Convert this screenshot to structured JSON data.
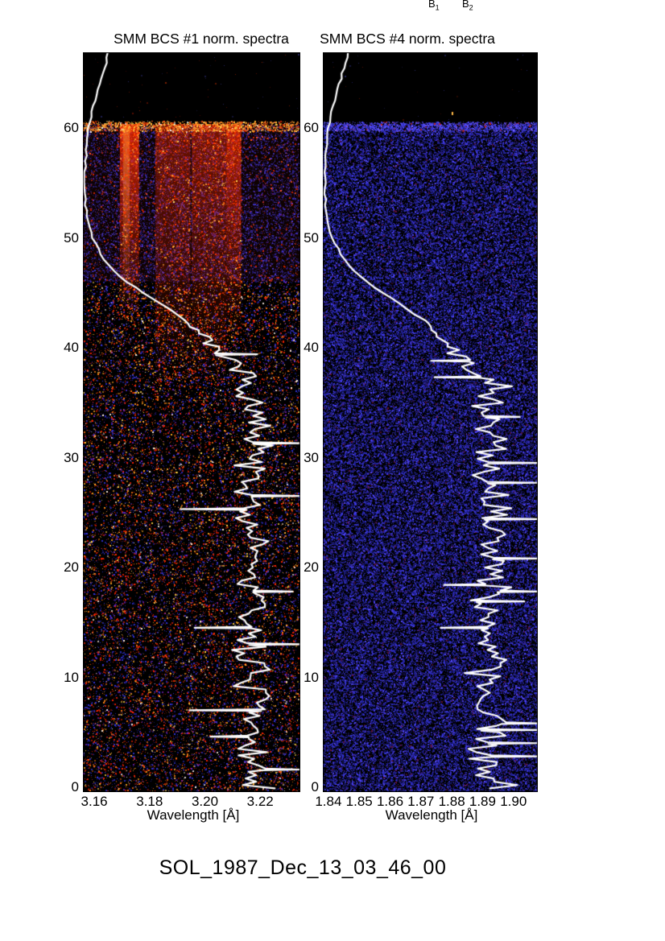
{
  "page": {
    "background": "#ffffff"
  },
  "header": {
    "b1": {
      "base": "B",
      "sub": "1"
    },
    "b2": {
      "base": "B",
      "sub": "2"
    }
  },
  "caption": "SOL_1987_Dec_13_03_46_00",
  "overlay_lightcurve": {
    "color": "#ffffff",
    "width": 2.2,
    "smooth": [
      [
        66.9,
        0.119
      ],
      [
        64,
        0.078
      ],
      [
        62,
        0.048
      ],
      [
        60,
        0.026
      ],
      [
        58,
        0.015
      ],
      [
        56,
        0.009
      ],
      [
        54,
        0.009
      ],
      [
        52,
        0.017
      ],
      [
        50,
        0.041
      ],
      [
        48,
        0.1
      ],
      [
        47,
        0.144
      ],
      [
        46,
        0.204
      ],
      [
        45,
        0.278
      ],
      [
        44,
        0.359
      ],
      [
        43,
        0.433
      ],
      [
        42.5,
        0.47
      ]
    ],
    "jagged": {
      "start": 42.5,
      "full": 36.5,
      "mean": 0.78,
      "amp": 0.13,
      "spike_prob": 0.12,
      "step": 0.3
    }
  },
  "chart_data": [
    {
      "type": "heatmap",
      "title": "SMM BCS #1 norm. spectra",
      "xlabel": "Wavelength [Å]",
      "xlim": [
        3.1559,
        3.2345
      ],
      "ylim": [
        -0.44,
        66.89
      ],
      "x_ticks": [
        {
          "label": "3.16",
          "value": 3.16
        },
        {
          "label": "3.18",
          "value": 3.18
        },
        {
          "label": "3.20",
          "value": 3.2
        },
        {
          "label": "3.22",
          "value": 3.22
        }
      ],
      "y_ticks": [
        {
          "label": "0",
          "value": 0
        },
        {
          "label": "10",
          "value": 10
        },
        {
          "label": "20",
          "value": 20
        },
        {
          "label": "30",
          "value": 30
        },
        {
          "label": "40",
          "value": 40
        },
        {
          "label": "50",
          "value": 50
        },
        {
          "label": "60",
          "value": 60
        }
      ],
      "background": "#000000",
      "seed": 1234,
      "curve_seed": 7,
      "data_top_value": 60.35,
      "noise_regions": [
        {
          "v0": 46,
          "v1": 60.35,
          "density": 0.26,
          "big": 0.25,
          "colors": [
            [
              "#16166e",
              22
            ],
            [
              "#222299",
              24
            ],
            [
              "#2e2ec0",
              20
            ],
            [
              "#3b36dd",
              12
            ],
            [
              "#4a40ee",
              7
            ],
            [
              "#0a0a33",
              10
            ],
            [
              "#551b99",
              5
            ]
          ]
        },
        {
          "v0": 46,
          "v1": 60.35,
          "density": 0.035,
          "big": 0.3,
          "colors": [
            [
              "#cc2200",
              50
            ],
            [
              "#992211",
              30
            ],
            [
              "#ff5522",
              20
            ]
          ]
        },
        {
          "v0": -0.44,
          "v1": 46,
          "density": 0.14,
          "big": 0.3,
          "colors": [
            [
              "#3333dd",
              26
            ],
            [
              "#22229a",
              12
            ],
            [
              "#ff2200",
              20
            ],
            [
              "#cc1e00",
              10
            ],
            [
              "#ff7711",
              12
            ],
            [
              "#ffaa22",
              7
            ],
            [
              "#7722bb",
              6
            ],
            [
              "#ffd044",
              4
            ],
            [
              "#ffeedd",
              3
            ]
          ]
        }
      ],
      "boundary_row": {
        "v0": 59.7,
        "v1": 60.6,
        "density": 0.5,
        "big": 0.35,
        "colors": [
          [
            "#ff8822",
            28
          ],
          [
            "#ffbb33",
            22
          ],
          [
            "#ff5511",
            22
          ],
          [
            "#ffdd66",
            12
          ],
          [
            "#cc2200",
            10
          ],
          [
            "#ffffff",
            6
          ]
        ]
      },
      "sparse_top": {
        "v0": 60.7,
        "v1": 66.89,
        "density": 0.0025,
        "big": 0.2,
        "colors": [
          [
            "#661100",
            40
          ],
          [
            "#28286a",
            40
          ],
          [
            "#882200",
            20
          ]
        ]
      },
      "wash": {
        "v0": 46,
        "v1": 60.35,
        "color": "255,40,0",
        "alpha": 0.055
      },
      "band_dot_colors": [
        [
          "#ff3300",
          45
        ],
        [
          "#ff6611",
          30
        ],
        [
          "#ffa033",
          18
        ],
        [
          "#ffdd55",
          7
        ]
      ],
      "bands": [
        {
          "f0": 0.17,
          "f1": 0.258,
          "alpha": 0.78,
          "fade_value": 42.5,
          "lambda": [
            3.169,
            3.176
          ],
          "core": {
            "f0": 0.185,
            "f1": 0.215,
            "alpha": 0.55,
            "fade_value": 44
          }
        },
        {
          "f0": 0.333,
          "f1": 0.495,
          "alpha": 0.4,
          "fade_value": 37,
          "lambda": [
            3.182,
            3.195
          ]
        },
        {
          "f0": 0.5,
          "f1": 0.66,
          "alpha": 0.44,
          "fade_value": 37,
          "lambda": [
            3.195,
            3.208
          ]
        },
        {
          "f0": 0.66,
          "f1": 0.728,
          "alpha": 0.68,
          "fade_value": 41,
          "lambda": [
            3.208,
            3.213
          ]
        }
      ]
    },
    {
      "type": "heatmap",
      "title": "SMM BCS #4 norm. spectra",
      "xlabel": "Wavelength [Å]",
      "xlim": [
        1.8382,
        1.9079
      ],
      "ylim": [
        -0.44,
        66.89
      ],
      "x_ticks": [
        {
          "label": "1.84",
          "value": 1.84
        },
        {
          "label": "1.85",
          "value": 1.85
        },
        {
          "label": "1.86",
          "value": 1.86
        },
        {
          "label": "1.87",
          "value": 1.87
        },
        {
          "label": "1.88",
          "value": 1.88
        },
        {
          "label": "1.89",
          "value": 1.89
        },
        {
          "label": "1.90",
          "value": 1.9
        }
      ],
      "y_ticks": [
        {
          "label": "0",
          "value": 0
        },
        {
          "label": "10",
          "value": 10
        },
        {
          "label": "20",
          "value": 20
        },
        {
          "label": "30",
          "value": 30
        },
        {
          "label": "40",
          "value": 40
        },
        {
          "label": "50",
          "value": 50
        },
        {
          "label": "60",
          "value": 60
        }
      ],
      "background": "#000000",
      "seed": 5678,
      "curve_seed": 99,
      "data_top_value": 60.35,
      "noise_regions": [
        {
          "v0": -0.44,
          "v1": 60.35,
          "density": 0.46,
          "big": 0.3,
          "colors": [
            [
              "#14146a",
              16
            ],
            [
              "#1f1f96",
              20
            ],
            [
              "#2a2ab8",
              20
            ],
            [
              "#3535d8",
              16
            ],
            [
              "#433cee",
              12
            ],
            [
              "#5549ff",
              8
            ],
            [
              "#3a2090",
              5
            ],
            [
              "#6a1238",
              3
            ]
          ]
        }
      ],
      "boundary_row": {
        "v0": 59.7,
        "v1": 60.55,
        "density": 0.55,
        "big": 0.3,
        "colors": [
          [
            "#4a42ee",
            30
          ],
          [
            "#5a52ff",
            25
          ],
          [
            "#3333cc",
            25
          ],
          [
            "#7a66ff",
            12
          ],
          [
            "#cc2211",
            8
          ]
        ]
      },
      "sparse_top": {
        "v0": 60.7,
        "v1": 66.89,
        "density": 0.0015,
        "big": 0.2,
        "colors": [
          [
            "#28286a",
            70
          ],
          [
            "#551100",
            30
          ]
        ]
      },
      "hot_spot": {
        "x_frac": 0.602,
        "value": 61.4,
        "color": "#ffaa33"
      }
    }
  ]
}
